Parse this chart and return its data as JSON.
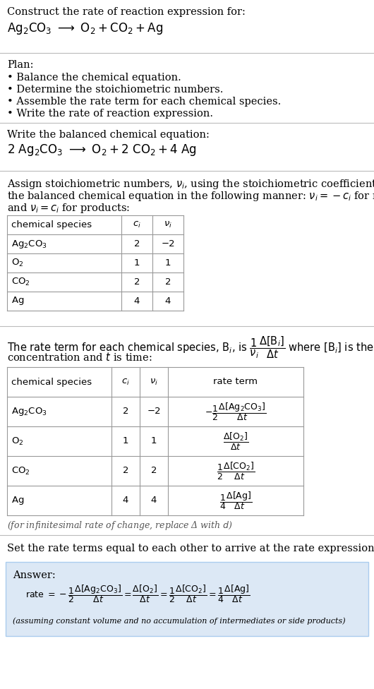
{
  "bg_color": "#ffffff",
  "text_color": "#000000",
  "title_line1": "Construct the rate of reaction expression for:",
  "plan_title": "Plan:",
  "plan_items": [
    "• Balance the chemical equation.",
    "• Determine the stoichiometric numbers.",
    "• Assemble the rate term for each chemical species.",
    "• Write the rate of reaction expression."
  ],
  "balanced_label": "Write the balanced chemical equation:",
  "stoich_intro1": "Assign stoichiometric numbers, $\\nu_i$, using the stoichiometric coefficients, $c_i$, from",
  "stoich_intro2": "the balanced chemical equation in the following manner: $\\nu_i = -c_i$ for reactants",
  "stoich_intro3": "and $\\nu_i = c_i$ for products:",
  "table1_headers": [
    "chemical species",
    "$c_i$",
    "$\\nu_i$"
  ],
  "table1_rows": [
    [
      "$\\mathrm{Ag_2CO_3}$",
      "2",
      "−2"
    ],
    [
      "$\\mathrm{O_2}$",
      "1",
      "1"
    ],
    [
      "$\\mathrm{CO_2}$",
      "2",
      "2"
    ],
    [
      "$\\mathrm{Ag}$",
      "4",
      "4"
    ]
  ],
  "rate_intro1": "The rate term for each chemical species, $\\mathrm{B}_i$, is $\\dfrac{1}{\\nu_i}\\dfrac{\\Delta[\\mathrm{B}_i]}{\\Delta t}$ where $[\\mathrm{B}_i]$ is the amount",
  "rate_intro2": "concentration and $t$ is time:",
  "table2_headers": [
    "chemical species",
    "$c_i$",
    "$\\nu_i$",
    "rate term"
  ],
  "table2_rows": [
    [
      "$\\mathrm{Ag_2CO_3}$",
      "2",
      "−2",
      "$-\\dfrac{1}{2}\\dfrac{\\Delta[\\mathrm{Ag_2CO_3}]}{\\Delta t}$"
    ],
    [
      "$\\mathrm{O_2}$",
      "1",
      "1",
      "$\\dfrac{\\Delta[\\mathrm{O_2}]}{\\Delta t}$"
    ],
    [
      "$\\mathrm{CO_2}$",
      "2",
      "2",
      "$\\dfrac{1}{2}\\dfrac{\\Delta[\\mathrm{CO_2}]}{\\Delta t}$"
    ],
    [
      "$\\mathrm{Ag}$",
      "4",
      "4",
      "$\\dfrac{1}{4}\\dfrac{\\Delta[\\mathrm{Ag}]}{\\Delta t}$"
    ]
  ],
  "infinitesimal_note": "(for infinitesimal rate of change, replace Δ with $d$)",
  "set_equal_text": "Set the rate terms equal to each other to arrive at the rate expression:",
  "answer_label": "Answer:",
  "answer_note": "(assuming constant volume and no accumulation of intermediates or side products)",
  "answer_box_color": "#dce8f5",
  "hr_color": "#bbbbbb",
  "table_line_color": "#999999"
}
